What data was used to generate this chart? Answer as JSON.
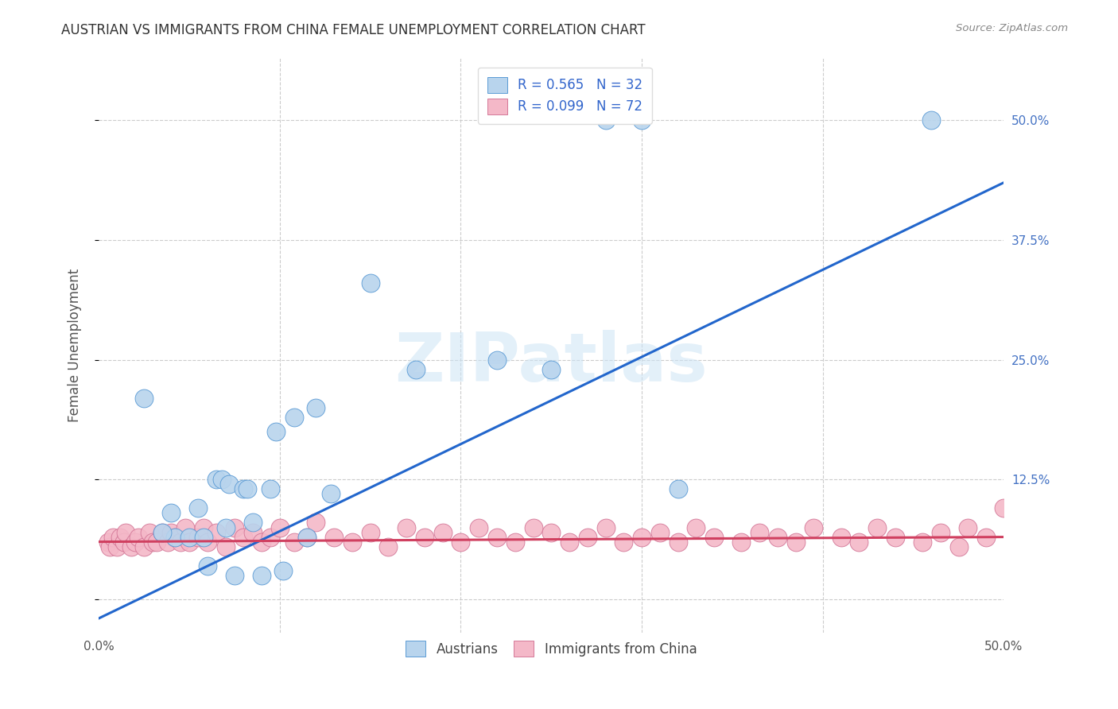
{
  "title": "AUSTRIAN VS IMMIGRANTS FROM CHINA FEMALE UNEMPLOYMENT CORRELATION CHART",
  "source": "Source: ZipAtlas.com",
  "ylabel": "Female Unemployment",
  "xlim": [
    0.0,
    0.5
  ],
  "ylim": [
    -0.035,
    0.565
  ],
  "xtick_vals": [
    0.0,
    0.1,
    0.2,
    0.3,
    0.4,
    0.5
  ],
  "ytick_vals": [
    0.0,
    0.125,
    0.25,
    0.375,
    0.5
  ],
  "blue_fill": "#b8d4ed",
  "blue_edge": "#5b9bd5",
  "pink_fill": "#f4b8c8",
  "pink_edge": "#d47898",
  "trend_blue": "#2266cc",
  "trend_pink": "#d04060",
  "r_blue": "0.565",
  "n_blue": "32",
  "r_pink": "0.099",
  "n_pink": "72",
  "watermark": "ZIPatlas",
  "watermark_color": "#cce4f5",
  "legend_color": "#3366cc",
  "austrians_x": [
    0.025,
    0.042,
    0.06,
    0.065,
    0.068,
    0.072,
    0.075,
    0.08,
    0.082,
    0.085,
    0.09,
    0.095,
    0.098,
    0.102,
    0.108,
    0.115,
    0.12,
    0.128,
    0.055,
    0.04,
    0.035,
    0.05,
    0.058,
    0.07,
    0.15,
    0.175,
    0.22,
    0.25,
    0.28,
    0.3,
    0.32,
    0.46
  ],
  "austrians_y": [
    0.21,
    0.065,
    0.035,
    0.125,
    0.125,
    0.12,
    0.025,
    0.115,
    0.115,
    0.08,
    0.025,
    0.115,
    0.175,
    0.03,
    0.19,
    0.065,
    0.2,
    0.11,
    0.095,
    0.09,
    0.07,
    0.065,
    0.065,
    0.075,
    0.33,
    0.24,
    0.25,
    0.24,
    0.5,
    0.5,
    0.115,
    0.5
  ],
  "china_x": [
    0.005,
    0.006,
    0.008,
    0.01,
    0.012,
    0.014,
    0.015,
    0.018,
    0.02,
    0.022,
    0.025,
    0.028,
    0.03,
    0.032,
    0.035,
    0.038,
    0.04,
    0.042,
    0.045,
    0.048,
    0.05,
    0.055,
    0.058,
    0.06,
    0.065,
    0.07,
    0.075,
    0.08,
    0.085,
    0.09,
    0.095,
    0.1,
    0.108,
    0.115,
    0.12,
    0.13,
    0.14,
    0.15,
    0.16,
    0.17,
    0.18,
    0.19,
    0.2,
    0.21,
    0.22,
    0.23,
    0.24,
    0.25,
    0.26,
    0.27,
    0.28,
    0.29,
    0.3,
    0.31,
    0.32,
    0.33,
    0.34,
    0.355,
    0.365,
    0.375,
    0.385,
    0.395,
    0.41,
    0.42,
    0.43,
    0.44,
    0.455,
    0.465,
    0.475,
    0.48,
    0.49,
    0.5
  ],
  "china_y": [
    0.06,
    0.055,
    0.065,
    0.055,
    0.065,
    0.06,
    0.07,
    0.055,
    0.06,
    0.065,
    0.055,
    0.07,
    0.06,
    0.06,
    0.07,
    0.06,
    0.07,
    0.065,
    0.06,
    0.075,
    0.06,
    0.065,
    0.075,
    0.06,
    0.07,
    0.055,
    0.075,
    0.065,
    0.07,
    0.06,
    0.065,
    0.075,
    0.06,
    0.065,
    0.08,
    0.065,
    0.06,
    0.07,
    0.055,
    0.075,
    0.065,
    0.07,
    0.06,
    0.075,
    0.065,
    0.06,
    0.075,
    0.07,
    0.06,
    0.065,
    0.075,
    0.06,
    0.065,
    0.07,
    0.06,
    0.075,
    0.065,
    0.06,
    0.07,
    0.065,
    0.06,
    0.075,
    0.065,
    0.06,
    0.075,
    0.065,
    0.06,
    0.07,
    0.055,
    0.075,
    0.065,
    0.095
  ],
  "blue_trend_x0": 0.0,
  "blue_trend_y0": -0.02,
  "blue_trend_x1": 0.5,
  "blue_trend_y1": 0.435,
  "pink_trend_x0": 0.0,
  "pink_trend_y0": 0.06,
  "pink_trend_x1": 0.5,
  "pink_trend_y1": 0.065
}
